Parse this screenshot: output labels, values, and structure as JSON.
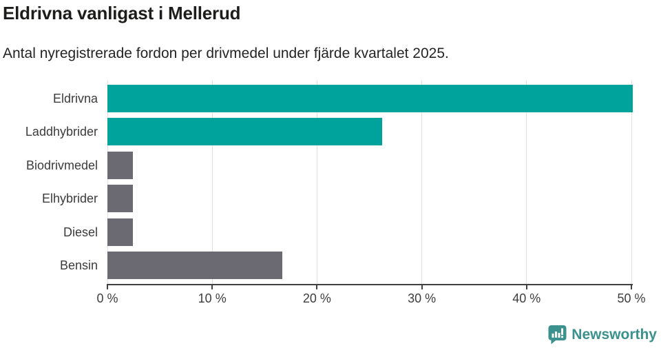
{
  "header": {
    "title": "Eldrivna vanligast i Mellerud",
    "subtitle": "Antal nyregistrerade fordon per drivmedel under fjärde kvartalet 2025."
  },
  "chart_data": {
    "type": "bar",
    "orientation": "horizontal",
    "title": "Eldrivna vanligast i Mellerud",
    "subtitle": "Antal nyregistrerade fordon per drivmedel under fjärde kvartalet 2025.",
    "categories": [
      "Eldrivna",
      "Laddhybrider",
      "Biodrivmedel",
      "Elhybrider",
      "Diesel",
      "Bensin"
    ],
    "values": [
      50.1,
      26.2,
      2.4,
      2.4,
      2.4,
      16.7
    ],
    "unit": "%",
    "series_colors": [
      "#00a39b",
      "#00a39b",
      "#6b6a72",
      "#6b6a72",
      "#6b6a72",
      "#6b6a72"
    ],
    "highlight_color": "#00a39b",
    "base_color": "#6b6a72",
    "xlabel": "",
    "ylabel": "",
    "xlim": [
      0,
      50
    ],
    "x_tick_values": [
      0,
      10,
      20,
      30,
      40,
      50
    ],
    "x_ticks": [
      "0 %",
      "10 %",
      "20 %",
      "30 %",
      "40 %",
      "50 %"
    ],
    "grid": true,
    "gridline_color": "#e0e0e0",
    "axis_color": "#414141",
    "legend": "none"
  },
  "footer": {
    "brand": "Newsworthy",
    "brand_color": "#3a918d"
  }
}
